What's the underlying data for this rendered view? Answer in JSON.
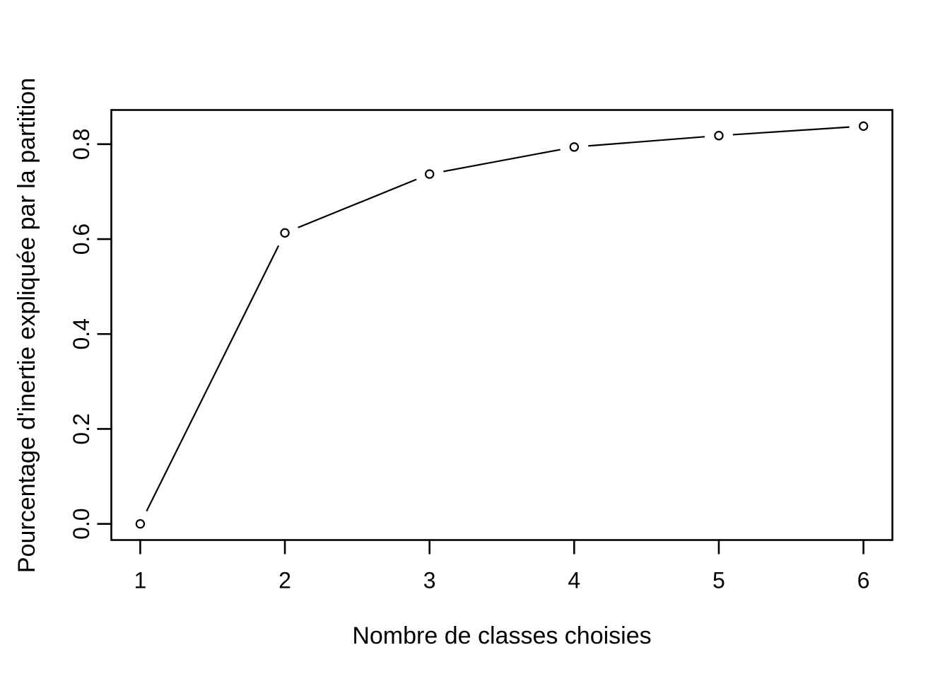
{
  "chart_data": {
    "type": "line",
    "style": "r-base-type-b-open-circles",
    "title": "",
    "xlabel": "Nombre de classes choisies",
    "ylabel": "Pourcentage d'inertie expliquée par la partition",
    "x": [
      1,
      2,
      3,
      4,
      5,
      6
    ],
    "y": [
      0.0,
      0.613,
      0.737,
      0.794,
      0.818,
      0.838
    ],
    "x_tick_labels": [
      "1",
      "2",
      "3",
      "4",
      "5",
      "6"
    ],
    "x_tick_values": [
      1,
      2,
      3,
      4,
      5,
      6
    ],
    "y_tick_labels": [
      "0.0",
      "0.2",
      "0.4",
      "0.6",
      "0.8"
    ],
    "y_tick_values": [
      0.0,
      0.2,
      0.4,
      0.6,
      0.8
    ],
    "xlim": [
      0.8,
      6.2
    ],
    "ylim": [
      -0.034,
      0.872
    ],
    "grid": false,
    "legend": null,
    "marker": "open-circle",
    "line_color": "#000000",
    "marker_fill": "#ffffff",
    "background_color": "#ffffff",
    "text_color": "#000000"
  }
}
